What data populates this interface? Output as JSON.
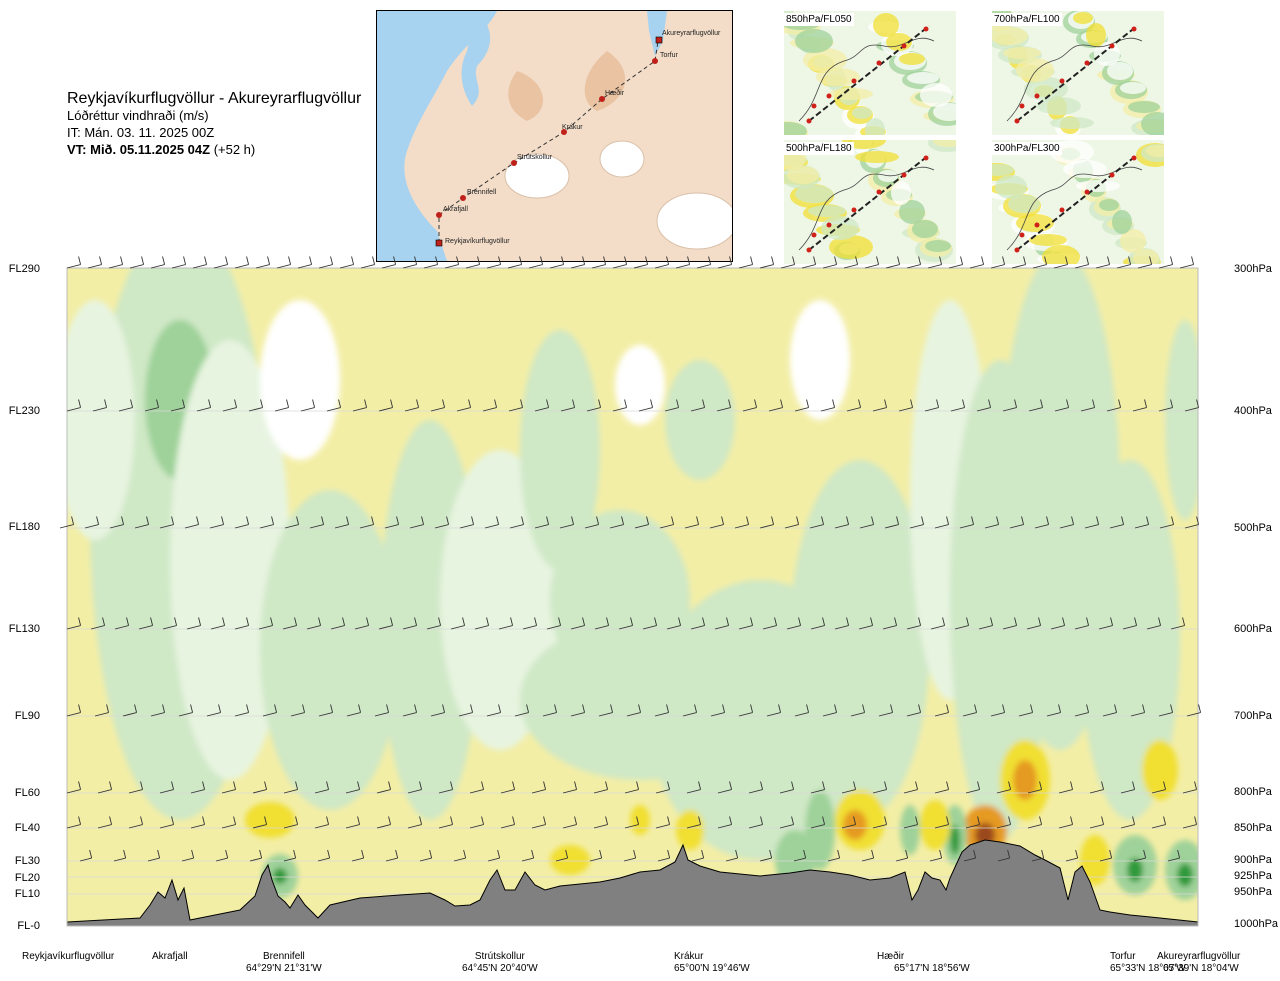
{
  "header": {
    "route": "Reykjavíkurflugvöllur - Akureyrarflugvöllur",
    "variable": "Lóðréttur vindhraði (m/s)",
    "issue_time": "IT: Mán. 03. 11. 2025 00Z",
    "valid_time_bold": "VT: Mið. 05.11.2025 04Z",
    "valid_time_offset": " (+52 h)"
  },
  "map": {
    "points": [
      "Akureyrarflugvöllur",
      "Torfur",
      "Hæðir",
      "Krákur",
      "Strútskollur",
      "Brennifell",
      "Akrafjall",
      "Reykjavíkurflugvöllur"
    ]
  },
  "mini_maps": [
    {
      "label": "850hPa/FL050"
    },
    {
      "label": "700hPa/FL100"
    },
    {
      "label": "500hPa/FL180"
    },
    {
      "label": "300hPa/FL300"
    }
  ],
  "chart_data": {
    "type": "heatmap",
    "title": "Lóðréttur vindhraði (m/s)",
    "xlabel": "",
    "ylabel": "",
    "flight_levels": [
      "FL290",
      "FL230",
      "FL180",
      "FL130",
      "FL90",
      "FL60",
      "FL40",
      "FL30",
      "FL20",
      "FL10",
      "FL-0"
    ],
    "pressure_levels": [
      "300hPa",
      "400hPa",
      "500hPa",
      "600hPa",
      "700hPa",
      "800hPa",
      "850hPa",
      "900hPa",
      "925hPa",
      "950hPa",
      "1000hPa"
    ],
    "waypoints": [
      {
        "name": "Reykjavíkurflugvöllur",
        "coord": ""
      },
      {
        "name": "Akrafjall",
        "coord": ""
      },
      {
        "name": "Brennifell",
        "coord": "64°29'N 21°31'W"
      },
      {
        "name": "Strútskollur",
        "coord": "64°45'N 20°40'W"
      },
      {
        "name": "Krákur",
        "coord": "65°00'N 19°46'W"
      },
      {
        "name": "Hæðir",
        "coord": "65°17'N 18°56'W"
      },
      {
        "name": "Torfur",
        "coord": "65°33'N 18°07'W"
      },
      {
        "name": "Akureyrarflugvöllur",
        "coord": "65°39'N 18°04'W"
      }
    ],
    "colors": {
      "yellow_light": "#f3eea6",
      "yellow": "#f1df33",
      "orange": "#e59a20",
      "brown": "#9b4a1a",
      "green_pale": "#e7f4e0",
      "green_light": "#cfe8c6",
      "green": "#9fd29a",
      "green_dark": "#2f9a3a",
      "terrain": "#808080"
    }
  }
}
